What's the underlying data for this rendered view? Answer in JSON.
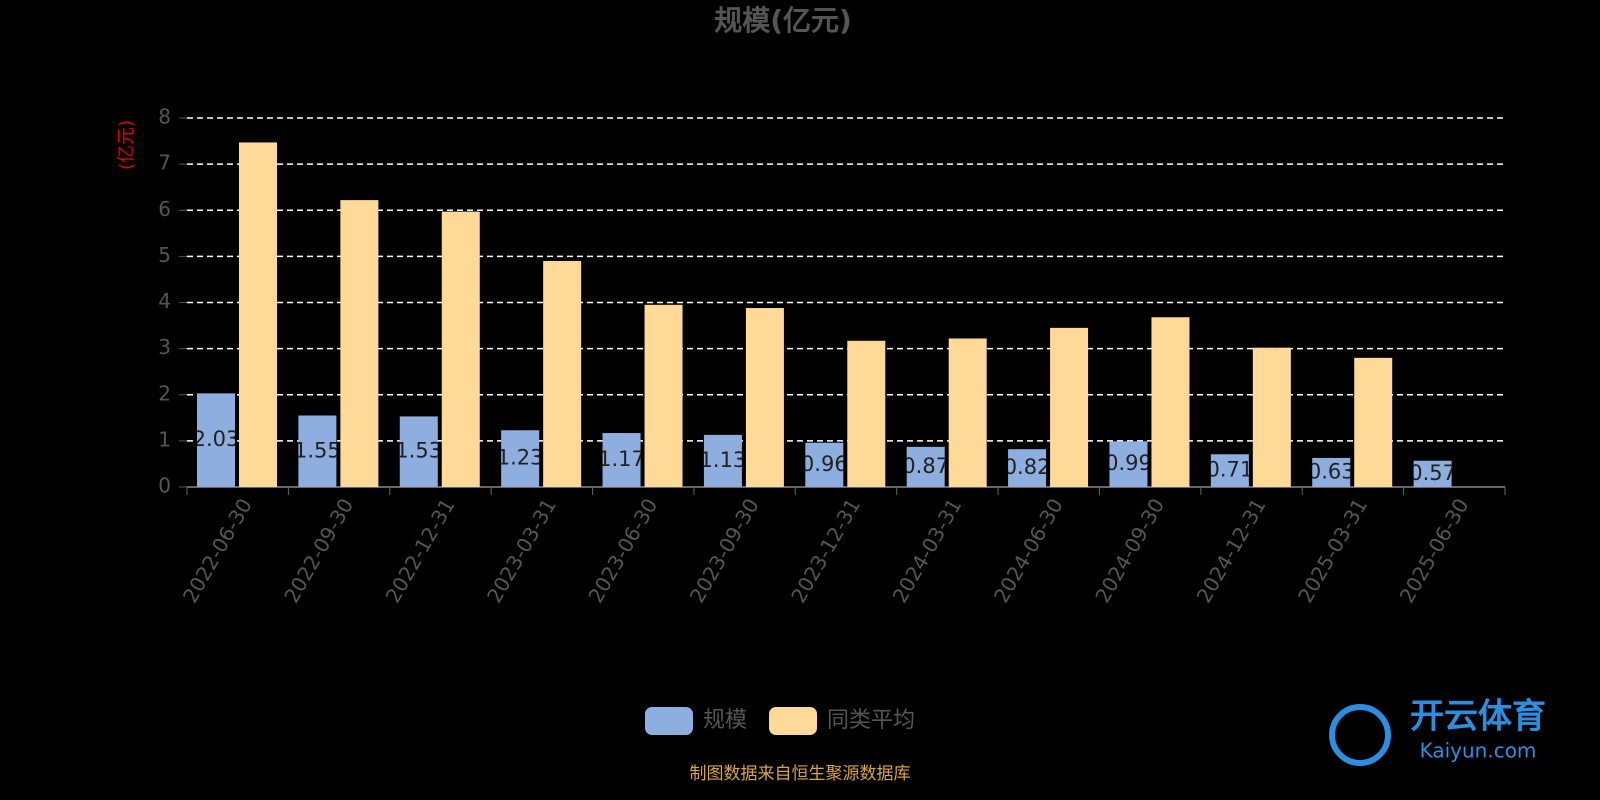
{
  "chart_data": {
    "type": "bar",
    "title": "规模(亿元)",
    "y_label": "(亿元)",
    "categories": [
      "2022-06-30",
      "2022-09-30",
      "2022-12-31",
      "2023-03-31",
      "2023-06-30",
      "2023-09-30",
      "2023-12-31",
      "2024-03-31",
      "2024-06-30",
      "2024-09-30",
      "2024-12-31",
      "2025-03-31",
      "2025-06-30"
    ],
    "series": [
      {
        "name": "规模",
        "color": "#8eaee0",
        "values": [
          2.03,
          1.55,
          1.53,
          1.23,
          1.17,
          1.13,
          0.96,
          0.87,
          0.82,
          0.99,
          0.71,
          0.63,
          0.57
        ],
        "data_labels": true
      },
      {
        "name": "同类平均",
        "color": "#ffd998",
        "values": [
          7.47,
          6.22,
          5.97,
          4.9,
          3.95,
          3.88,
          3.17,
          3.22,
          3.45,
          3.68,
          3.02,
          2.8,
          null
        ]
      }
    ],
    "ylim": [
      0,
      8
    ],
    "yticks": [
      0,
      1,
      2,
      3,
      4,
      5,
      6,
      7,
      8
    ],
    "grid": true,
    "legend": "bottom",
    "source": "制图数据来自恒生聚源数据库",
    "watermark": {
      "name": "开云体育",
      "url": "Kaiyun.com"
    }
  }
}
